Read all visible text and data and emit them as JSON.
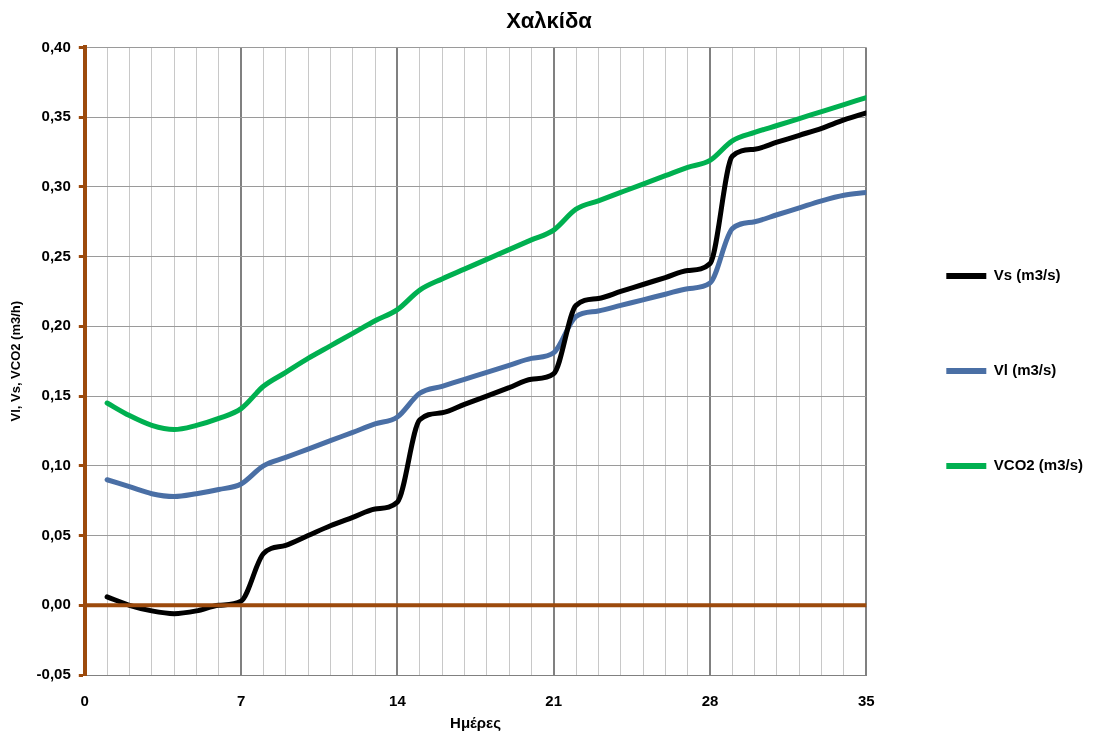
{
  "chart_data": {
    "type": "line",
    "title": "Χαλκίδα",
    "xlabel": "Ημέρες",
    "ylabel": "Vl, Vs, VCO2 (m3/h)",
    "x": [
      1,
      2,
      3,
      4,
      5,
      6,
      7,
      8,
      9,
      10,
      11,
      12,
      13,
      14,
      15,
      16,
      17,
      18,
      19,
      20,
      21,
      22,
      23,
      24,
      25,
      26,
      27,
      28,
      29,
      30,
      31,
      32,
      33,
      34,
      35
    ],
    "series": [
      {
        "name": "Vs (m3/s)",
        "color": "#000000",
        "values": [
          0.006,
          0.0,
          -0.004,
          -0.006,
          -0.004,
          0.0,
          0.003,
          0.037,
          0.043,
          0.05,
          0.057,
          0.063,
          0.069,
          0.074,
          0.133,
          0.138,
          0.144,
          0.15,
          0.156,
          0.162,
          0.166,
          0.215,
          0.22,
          0.225,
          0.23,
          0.235,
          0.24,
          0.245,
          0.322,
          0.327,
          0.332,
          0.337,
          0.342,
          0.348,
          0.353
        ]
      },
      {
        "name": "Vl (m3/s)",
        "color": "#4a6fa5",
        "values": [
          0.09,
          0.085,
          0.08,
          0.078,
          0.08,
          0.083,
          0.087,
          0.1,
          0.106,
          0.112,
          0.118,
          0.124,
          0.13,
          0.135,
          0.152,
          0.157,
          0.162,
          0.167,
          0.172,
          0.177,
          0.181,
          0.207,
          0.211,
          0.215,
          0.219,
          0.223,
          0.227,
          0.231,
          0.27,
          0.275,
          0.28,
          0.285,
          0.29,
          0.294,
          0.296
        ]
      },
      {
        "name": "VCO2 (m3/s)",
        "color": "#00b050",
        "values": [
          0.145,
          0.136,
          0.129,
          0.126,
          0.129,
          0.134,
          0.141,
          0.157,
          0.167,
          0.177,
          0.186,
          0.195,
          0.204,
          0.212,
          0.226,
          0.234,
          0.241,
          0.248,
          0.255,
          0.262,
          0.269,
          0.284,
          0.29,
          0.296,
          0.302,
          0.308,
          0.314,
          0.319,
          0.333,
          0.339,
          0.344,
          0.349,
          0.354,
          0.359,
          0.364
        ]
      }
    ],
    "xlim": [
      0,
      35
    ],
    "xticks": [
      0,
      {
        "value": 1,
        "label": null
      },
      {
        "value": 2,
        "label": null
      },
      {
        "value": 3,
        "label": null
      },
      {
        "value": 4,
        "label": null
      },
      {
        "value": 5,
        "label": null
      },
      {
        "value": 6,
        "label": null
      },
      7,
      {
        "value": 8,
        "label": null
      },
      {
        "value": 9,
        "label": null
      },
      {
        "value": 10,
        "label": null
      },
      {
        "value": 11,
        "label": null
      },
      {
        "value": 12,
        "label": null
      },
      {
        "value": 13,
        "label": null
      },
      14,
      {
        "value": 15,
        "label": null
      },
      {
        "value": 16,
        "label": null
      },
      {
        "value": 17,
        "label": null
      },
      {
        "value": 18,
        "label": null
      },
      {
        "value": 19,
        "label": null
      },
      {
        "value": 20,
        "label": null
      },
      21,
      {
        "value": 22,
        "label": null
      },
      {
        "value": 23,
        "label": null
      },
      {
        "value": 24,
        "label": null
      },
      {
        "value": 25,
        "label": null
      },
      {
        "value": 26,
        "label": null
      },
      {
        "value": 27,
        "label": null
      },
      28,
      {
        "value": 29,
        "label": null
      },
      {
        "value": 30,
        "label": null
      },
      {
        "value": 31,
        "label": null
      },
      {
        "value": 32,
        "label": null
      },
      {
        "value": 33,
        "label": null
      },
      {
        "value": 34,
        "label": null
      },
      35
    ],
    "ylim": [
      -0.05,
      0.4
    ],
    "yticks": [
      {
        "value": -0.05,
        "label": "-0,05"
      },
      {
        "value": 0,
        "label": "0,00"
      },
      {
        "value": 0.05,
        "label": "0,05"
      },
      {
        "value": 0.1,
        "label": "0,10"
      },
      {
        "value": 0.15,
        "label": "0,15"
      },
      {
        "value": 0.2,
        "label": "0,20"
      },
      {
        "value": 0.25,
        "label": "0,25"
      },
      {
        "value": 0.3,
        "label": "0,30"
      },
      {
        "value": 0.35,
        "label": "0,35"
      },
      {
        "value": 0.4,
        "label": "0,40"
      }
    ],
    "ref_lines": [
      {
        "axis": "y",
        "value": 0,
        "color": "#9c4a0c"
      }
    ],
    "grid": true,
    "legend": "right",
    "marker": "none",
    "line_style": "solid"
  }
}
